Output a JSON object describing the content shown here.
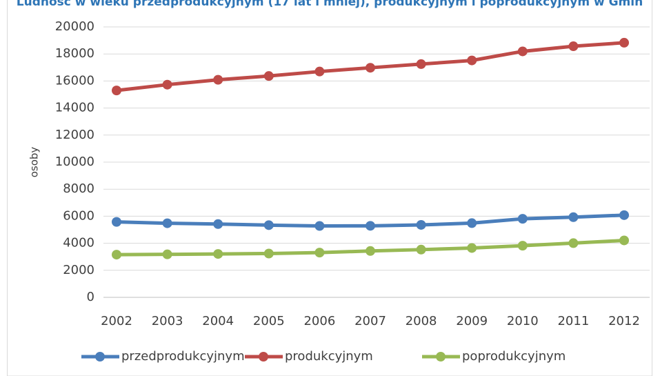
{
  "chart_data": {
    "type": "line",
    "title": "Ludność w wieku przedprodukcyjnym (17 lat i mniej), produkcyjnym i poprodukcyjnym w Gmin",
    "y_label": "osoby",
    "categories": [
      "2002",
      "2003",
      "2004",
      "2005",
      "2006",
      "2007",
      "2008",
      "2009",
      "2010",
      "2011",
      "2012"
    ],
    "series": [
      {
        "name": "przedprodukcyjnym",
        "color": "#4a7ebb",
        "values": [
          5580,
          5480,
          5420,
          5340,
          5280,
          5290,
          5360,
          5490,
          5810,
          5930,
          6080
        ]
      },
      {
        "name": "produkcyjnym",
        "color": "#be4b48",
        "values": [
          15300,
          15730,
          16090,
          16370,
          16700,
          16980,
          17250,
          17520,
          18190,
          18570,
          18830
        ]
      },
      {
        "name": "poprodukcyjnym",
        "color": "#98b954",
        "values": [
          3160,
          3180,
          3210,
          3240,
          3310,
          3430,
          3530,
          3650,
          3820,
          4010,
          4210
        ]
      }
    ],
    "ylim": [
      0,
      20000
    ],
    "yticks": [
      0,
      2000,
      4000,
      6000,
      8000,
      10000,
      12000,
      14000,
      16000,
      18000,
      20000
    ],
    "grid": true,
    "legend": "bottom"
  }
}
